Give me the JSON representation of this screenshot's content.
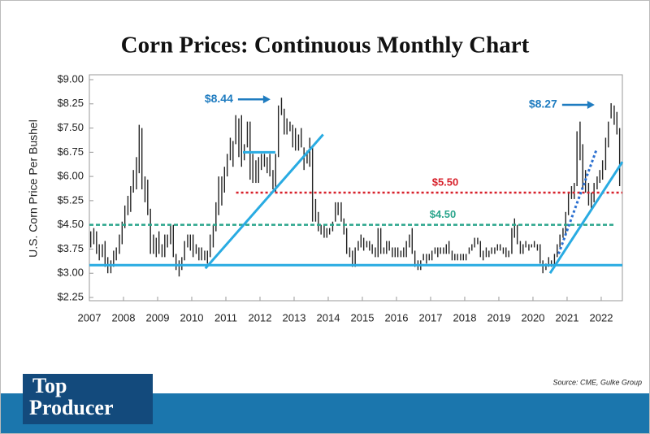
{
  "chart_data": {
    "type": "ohlc",
    "title": "Corn Prices: Continuous Monthly Chart",
    "y_label": "U.S. Corn Price Per Bushel",
    "source": "Source: CME, Gulke Group",
    "logo": [
      "Top",
      "Producer"
    ],
    "xlim": [
      2007,
      2022.62
    ],
    "xticks": [
      2007,
      2008,
      2009,
      2010,
      2011,
      2012,
      2013,
      2014,
      2015,
      2016,
      2017,
      2018,
      2019,
      2020,
      2021,
      2022
    ],
    "ylim": [
      2.25,
      9
    ],
    "yticks": [
      {
        "value": 2.25,
        "label": "$2.25"
      },
      {
        "value": 3,
        "label": "$3.00"
      },
      {
        "value": 3.75,
        "label": "$3.75"
      },
      {
        "value": 4.5,
        "label": "$4.50"
      },
      {
        "value": 5.25,
        "label": "$5.25"
      },
      {
        "value": 6,
        "label": "$6.00"
      },
      {
        "value": 6.75,
        "label": "$6.75"
      },
      {
        "value": 7.5,
        "label": "$7.50"
      },
      {
        "value": 8.25,
        "label": "$8.25"
      },
      {
        "value": 9,
        "label": "$9.00"
      }
    ],
    "bar_color": "#222222",
    "x": [
      2007.04,
      2007.13,
      2007.21,
      2007.29,
      2007.38,
      2007.46,
      2007.54,
      2007.63,
      2007.71,
      2007.79,
      2007.88,
      2007.96,
      2008.04,
      2008.13,
      2008.21,
      2008.29,
      2008.38,
      2008.46,
      2008.54,
      2008.63,
      2008.71,
      2008.79,
      2008.88,
      2008.96,
      2009.04,
      2009.13,
      2009.21,
      2009.29,
      2009.38,
      2009.46,
      2009.54,
      2009.63,
      2009.71,
      2009.79,
      2009.88,
      2009.96,
      2010.04,
      2010.13,
      2010.21,
      2010.29,
      2010.38,
      2010.46,
      2010.54,
      2010.63,
      2010.71,
      2010.79,
      2010.88,
      2010.96,
      2011.04,
      2011.13,
      2011.21,
      2011.29,
      2011.38,
      2011.46,
      2011.54,
      2011.63,
      2011.71,
      2011.79,
      2011.88,
      2011.96,
      2012.04,
      2012.13,
      2012.21,
      2012.29,
      2012.38,
      2012.46,
      2012.54,
      2012.63,
      2012.71,
      2012.79,
      2012.88,
      2012.96,
      2013.04,
      2013.13,
      2013.21,
      2013.29,
      2013.38,
      2013.46,
      2013.54,
      2013.63,
      2013.71,
      2013.79,
      2013.88,
      2013.96,
      2014.04,
      2014.13,
      2014.21,
      2014.29,
      2014.38,
      2014.46,
      2014.54,
      2014.63,
      2014.71,
      2014.79,
      2014.88,
      2014.96,
      2015.04,
      2015.13,
      2015.21,
      2015.29,
      2015.38,
      2015.46,
      2015.54,
      2015.63,
      2015.71,
      2015.79,
      2015.88,
      2015.96,
      2016.04,
      2016.13,
      2016.21,
      2016.29,
      2016.38,
      2016.46,
      2016.54,
      2016.63,
      2016.71,
      2016.79,
      2016.88,
      2016.96,
      2017.04,
      2017.13,
      2017.21,
      2017.29,
      2017.38,
      2017.46,
      2017.54,
      2017.63,
      2017.71,
      2017.79,
      2017.88,
      2017.96,
      2018.04,
      2018.13,
      2018.21,
      2018.29,
      2018.38,
      2018.46,
      2018.54,
      2018.63,
      2018.71,
      2018.79,
      2018.88,
      2018.96,
      2019.04,
      2019.13,
      2019.21,
      2019.29,
      2019.38,
      2019.46,
      2019.54,
      2019.63,
      2019.71,
      2019.79,
      2019.88,
      2019.96,
      2020.04,
      2020.13,
      2020.21,
      2020.29,
      2020.38,
      2020.46,
      2020.54,
      2020.63,
      2020.71,
      2020.79,
      2020.88,
      2020.96,
      2021.04,
      2021.13,
      2021.21,
      2021.29,
      2021.38,
      2021.46,
      2021.54,
      2021.63,
      2021.71,
      2021.79,
      2021.88,
      2021.96,
      2022.04,
      2022.13,
      2022.21,
      2022.29,
      2022.38,
      2022.46,
      2022.54
    ],
    "high": [
      4.3,
      4.4,
      4.3,
      3.9,
      3.9,
      4.0,
      3.5,
      3.4,
      3.7,
      3.8,
      4.2,
      4.6,
      5.1,
      5.4,
      5.7,
      6.2,
      6.6,
      7.6,
      7.5,
      6.0,
      5.9,
      5.0,
      4.2,
      4.1,
      4.3,
      3.9,
      4.2,
      4.2,
      4.5,
      4.5,
      3.6,
      3.4,
      3.5,
      4.0,
      4.2,
      4.2,
      4.2,
      3.9,
      3.8,
      3.8,
      3.7,
      3.7,
      4.2,
      4.5,
      5.2,
      6.0,
      6.0,
      6.3,
      6.7,
      7.2,
      7.1,
      7.9,
      7.8,
      7.9,
      7.0,
      7.7,
      7.7,
      6.7,
      6.5,
      6.6,
      6.7,
      6.7,
      6.6,
      6.7,
      6.2,
      6.7,
      8.2,
      8.44,
      8.1,
      7.8,
      7.7,
      7.6,
      7.5,
      7.3,
      7.5,
      6.9,
      6.8,
      7.2,
      6.9,
      5.3,
      4.9,
      4.5,
      4.5,
      4.4,
      4.4,
      4.6,
      5.2,
      5.2,
      5.2,
      4.7,
      4.4,
      3.8,
      3.7,
      3.8,
      4.0,
      4.2,
      4.1,
      4.0,
      4.0,
      3.9,
      3.8,
      4.4,
      4.4,
      3.8,
      4.0,
      4.0,
      3.8,
      3.8,
      3.8,
      3.7,
      3.8,
      4.0,
      4.2,
      4.4,
      3.7,
      3.4,
      3.4,
      3.6,
      3.6,
      3.6,
      3.7,
      3.8,
      3.8,
      3.8,
      3.8,
      3.9,
      4.0,
      3.7,
      3.6,
      3.6,
      3.6,
      3.6,
      3.6,
      3.8,
      3.9,
      4.1,
      4.1,
      4.0,
      3.7,
      3.8,
      3.7,
      3.8,
      3.8,
      3.9,
      3.9,
      3.8,
      3.8,
      3.7,
      4.4,
      4.7,
      4.5,
      4.0,
      3.9,
      4.0,
      3.9,
      3.9,
      4.0,
      3.9,
      3.9,
      3.4,
      3.3,
      3.5,
      3.4,
      3.6,
      3.9,
      4.2,
      4.4,
      4.9,
      5.5,
      5.7,
      5.8,
      7.4,
      7.7,
      7.0,
      6.2,
      5.8,
      5.5,
      5.8,
      6.0,
      6.2,
      6.5,
      7.2,
      7.7,
      8.27,
      8.2,
      8.0,
      7.5
    ],
    "low": [
      3.8,
      3.9,
      3.6,
      3.4,
      3.5,
      3.2,
      3.0,
      3.0,
      3.2,
      3.4,
      3.6,
      3.9,
      4.4,
      4.8,
      4.9,
      5.5,
      5.6,
      6.1,
      5.6,
      5.2,
      4.8,
      3.6,
      3.6,
      3.5,
      3.6,
      3.5,
      3.5,
      3.8,
      3.9,
      3.5,
      3.1,
      2.9,
      3.1,
      3.4,
      3.8,
      3.7,
      3.5,
      3.6,
      3.4,
      3.4,
      3.4,
      3.3,
      3.5,
      3.8,
      4.3,
      4.8,
      5.1,
      5.5,
      6.0,
      6.5,
      6.3,
      7.0,
      6.6,
      6.3,
      6.5,
      6.9,
      5.9,
      5.8,
      5.8,
      5.8,
      6.2,
      6.3,
      6.1,
      6.0,
      5.6,
      5.5,
      6.6,
      7.9,
      7.3,
      7.3,
      7.4,
      6.9,
      6.8,
      6.8,
      6.9,
      6.2,
      6.4,
      6.3,
      4.6,
      4.6,
      4.3,
      4.2,
      4.1,
      4.1,
      4.2,
      4.3,
      4.6,
      4.8,
      4.6,
      4.2,
      3.6,
      3.5,
      3.2,
      3.2,
      3.7,
      3.8,
      3.7,
      3.8,
      3.7,
      3.6,
      3.5,
      3.5,
      3.6,
      3.6,
      3.6,
      3.7,
      3.5,
      3.5,
      3.5,
      3.5,
      3.5,
      3.5,
      3.8,
      3.6,
      3.2,
      3.1,
      3.1,
      3.4,
      3.3,
      3.4,
      3.4,
      3.6,
      3.5,
      3.6,
      3.6,
      3.6,
      3.6,
      3.4,
      3.4,
      3.4,
      3.4,
      3.4,
      3.4,
      3.6,
      3.7,
      3.8,
      3.9,
      3.5,
      3.4,
      3.5,
      3.5,
      3.6,
      3.6,
      3.7,
      3.7,
      3.6,
      3.5,
      3.5,
      3.6,
      4.1,
      3.9,
      3.6,
      3.6,
      3.8,
      3.7,
      3.8,
      3.8,
      3.7,
      3.3,
      3.0,
      3.1,
      3.2,
      3.2,
      3.2,
      3.5,
      3.8,
      4.1,
      4.2,
      4.8,
      5.3,
      5.3,
      5.7,
      6.5,
      5.6,
      5.5,
      5.1,
      5.0,
      5.2,
      5.6,
      5.8,
      5.9,
      6.2,
      6.9,
      7.8,
      7.6,
      7.3,
      5.7
    ],
    "levels": [
      {
        "value": 3.25,
        "color": "#29abe2",
        "style": "solid",
        "x": [
          2007,
          2022.62
        ]
      },
      {
        "value": 6.75,
        "color": "#29abe2",
        "style": "solid",
        "x": [
          2011.5,
          2012.45
        ]
      },
      {
        "value": 4.5,
        "label": "$4.50",
        "color": "#2aa58c",
        "style": "dashed",
        "x": [
          2007,
          2022.4
        ]
      },
      {
        "value": 5.5,
        "label": "$5.50",
        "color": "#d7202a",
        "style": "dotted",
        "x": [
          2011.3,
          2022.62
        ]
      }
    ],
    "trendlines": [
      {
        "x": [
          2010.4,
          2013.85
        ],
        "y": [
          3.15,
          7.3
        ],
        "color": "#29abe2",
        "style": "solid"
      },
      {
        "x": [
          2020.5,
          2022.62
        ],
        "y": [
          3.0,
          6.45
        ],
        "color": "#29abe2",
        "style": "solid"
      },
      {
        "x": [
          2020.75,
          2021.85
        ],
        "y": [
          3.6,
          6.8
        ],
        "color": "#2a6fd0",
        "style": "dotted"
      }
    ],
    "callouts": [
      {
        "value": 8.44,
        "label": "$8.44",
        "x": 2012.45,
        "color": "#1f7cc0"
      },
      {
        "value": 8.27,
        "label": "$8.27",
        "x": 2021.95,
        "color": "#1f7cc0"
      }
    ]
  }
}
